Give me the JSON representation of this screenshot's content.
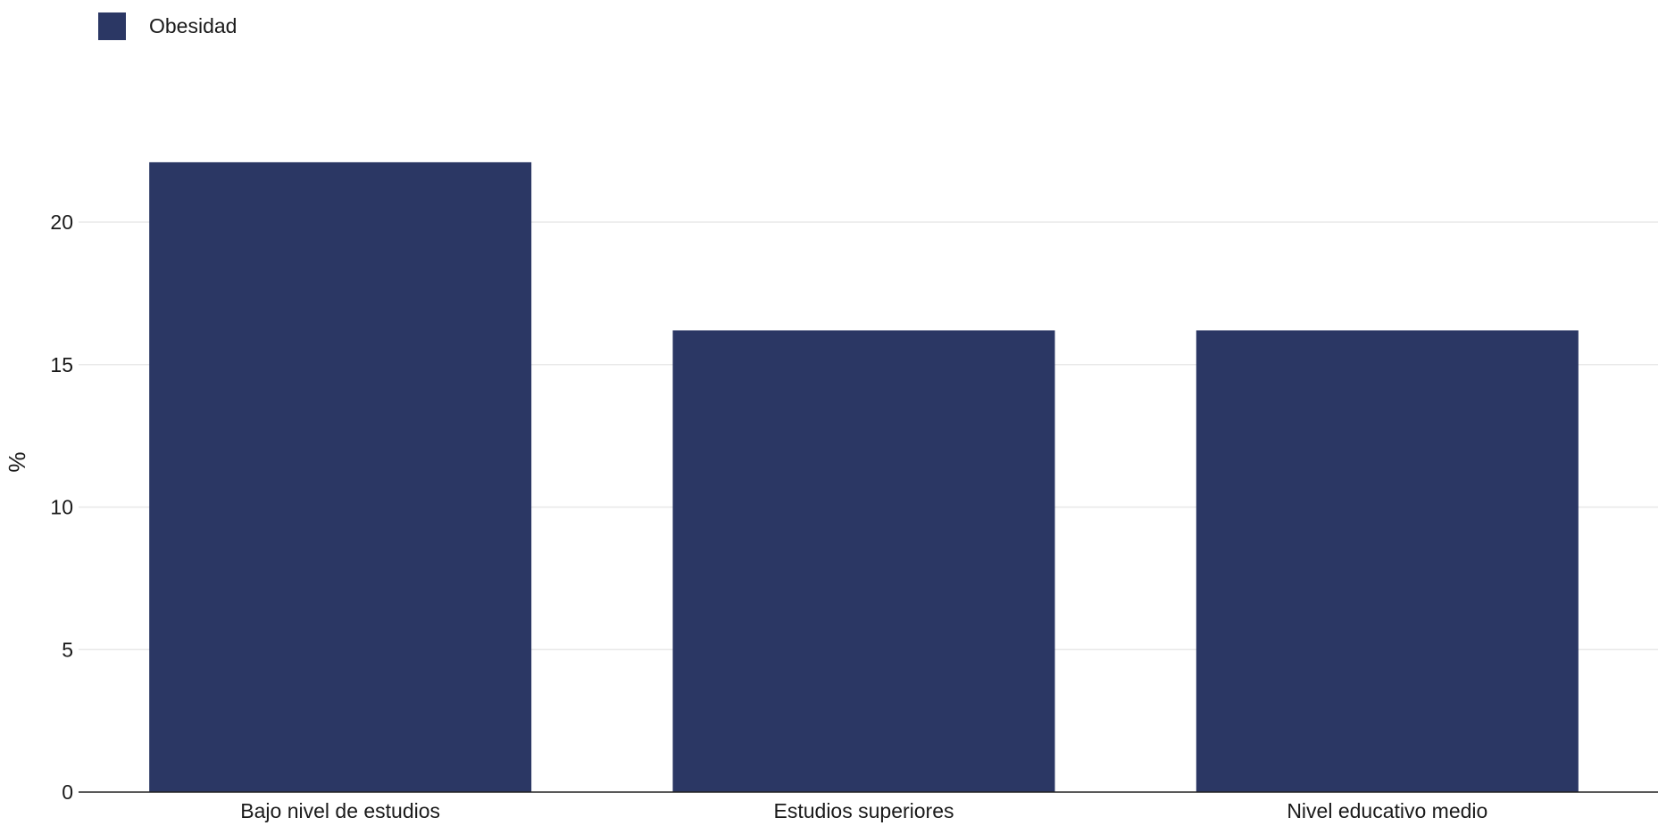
{
  "colors": {
    "bar": "#2b3764",
    "grid": "#e8e8e8",
    "axis": "#222222"
  },
  "chart_data": {
    "type": "bar",
    "title": "",
    "xlabel": "",
    "ylabel": "%",
    "categories": [
      "Bajo nivel de estudios",
      "Estudios superiores",
      "Nivel educativo medio"
    ],
    "series": [
      {
        "name": "Obesidad",
        "values": [
          22.1,
          16.2,
          16.2
        ]
      }
    ],
    "ylim": [
      0,
      25
    ],
    "yticks": [
      0,
      5,
      10,
      15,
      20
    ],
    "grid": true,
    "legend": "top-left"
  }
}
